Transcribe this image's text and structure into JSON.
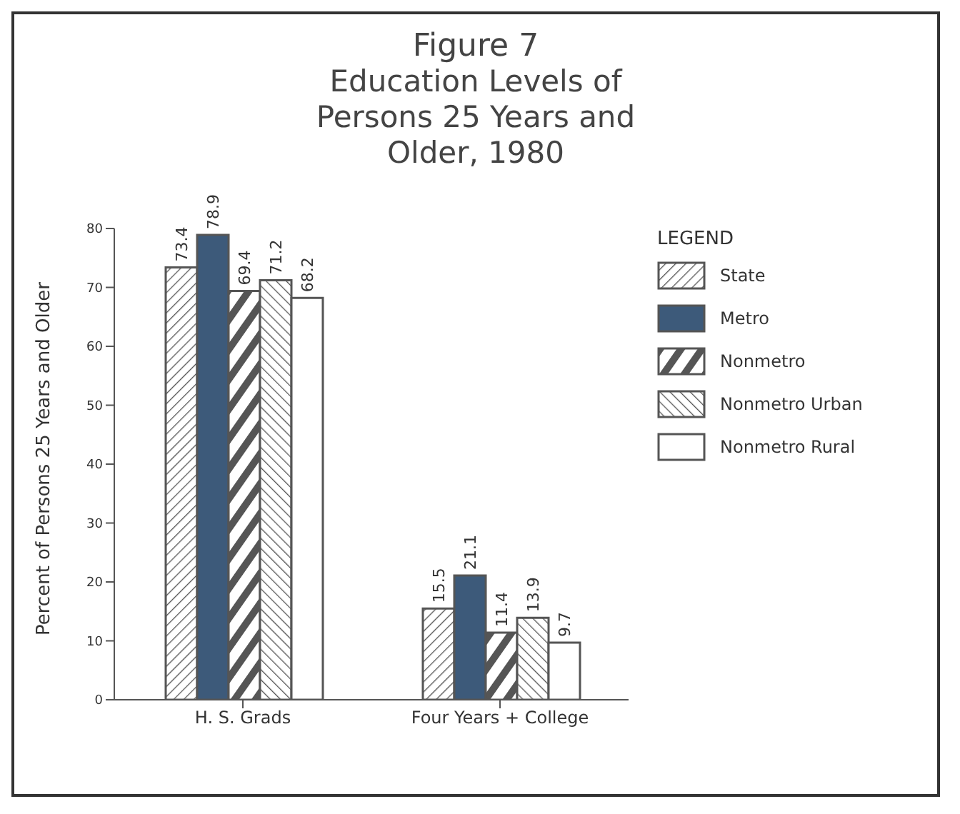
{
  "chart_data": {
    "type": "bar",
    "title": "Figure 7",
    "subtitle": "Education Levels of Persons 25 Years and Older, 1980",
    "ylabel": "Percent of Persons 25 Years and Older",
    "legend_title": "LEGEND",
    "categories": [
      "H. S. Grads",
      "Four Years + College"
    ],
    "series": [
      {
        "name": "State",
        "color": "#555555",
        "values": [
          73.4,
          15.5
        ]
      },
      {
        "name": "Metro",
        "color": "#3d5a7a",
        "values": [
          78.9,
          21.1
        ]
      },
      {
        "name": "Nonmetro",
        "color": "#555555",
        "values": [
          69.4,
          11.4
        ]
      },
      {
        "name": "Nonmetro Urban",
        "color": "#555555",
        "values": [
          71.2,
          13.9
        ]
      },
      {
        "name": "Nonmetro Rural",
        "color": "#ffffff",
        "values": [
          68.2,
          9.7
        ]
      }
    ],
    "ylim": [
      0,
      80
    ],
    "yticks": [
      0,
      10,
      20,
      30,
      40,
      50,
      60,
      70,
      80
    ],
    "grid": false,
    "legend": "top right",
    "data_labels": true
  }
}
